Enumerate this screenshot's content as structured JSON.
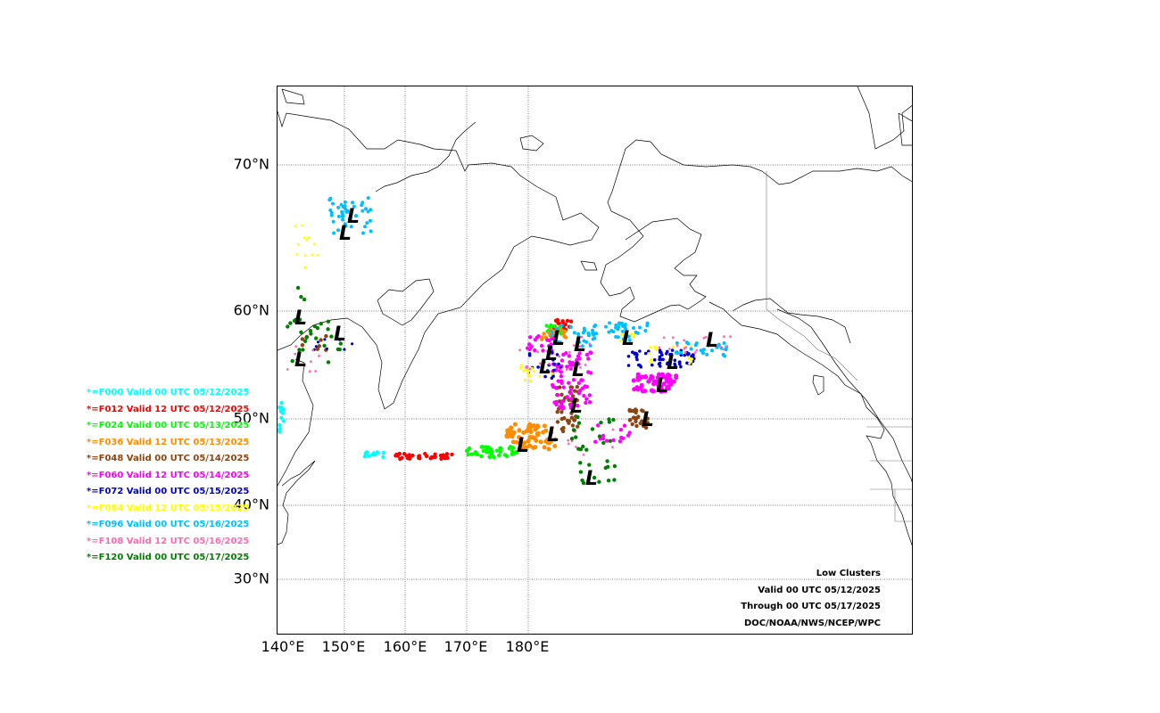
{
  "map": {
    "lat_labels": [
      "70°N",
      "60°N",
      "50°N",
      "40°N",
      "30°N"
    ],
    "lon_labels": [
      "140°E",
      "150°E",
      "160°E",
      "170°E",
      "180°E"
    ],
    "low_symbol": "L"
  },
  "legend": [
    {
      "text": "*=F000 Valid 00 UTC 05/12/2025",
      "color": "#00ffff"
    },
    {
      "text": "*=F012 Valid 12 UTC 05/12/2025",
      "color": "#ff0000"
    },
    {
      "text": "*=F024 Valid 00 UTC 05/13/2025",
      "color": "#00ff00"
    },
    {
      "text": "*=F036 Valid 12 UTC 05/13/2025",
      "color": "#ff8c00"
    },
    {
      "text": "*=F048 Valid 00 UTC 05/14/2025",
      "color": "#8b4513"
    },
    {
      "text": "*=F060 Valid 12 UTC 05/14/2025",
      "color": "#ff00ff"
    },
    {
      "text": "*=F072 Valid 00 UTC 05/15/2025",
      "color": "#0000cd"
    },
    {
      "text": "*=F084 Valid 12 UTC 05/15/2025",
      "color": "#ffff00"
    },
    {
      "text": "*=F096 Valid 00 UTC 05/16/2025",
      "color": "#00bfff"
    },
    {
      "text": "*=F108 Valid 12 UTC 05/16/2025",
      "color": "#ff69b4"
    },
    {
      "text": "*=F120 Valid 00 UTC 05/17/2025",
      "color": "#008000"
    }
  ],
  "info": {
    "line1": "Low Clusters",
    "line2": "Valid 00 UTC 05/12/2025",
    "line3": "Through 00 UTC 05/17/2025",
    "line4": "DOC/NOAA/NWS/NCEP/WPC"
  }
}
